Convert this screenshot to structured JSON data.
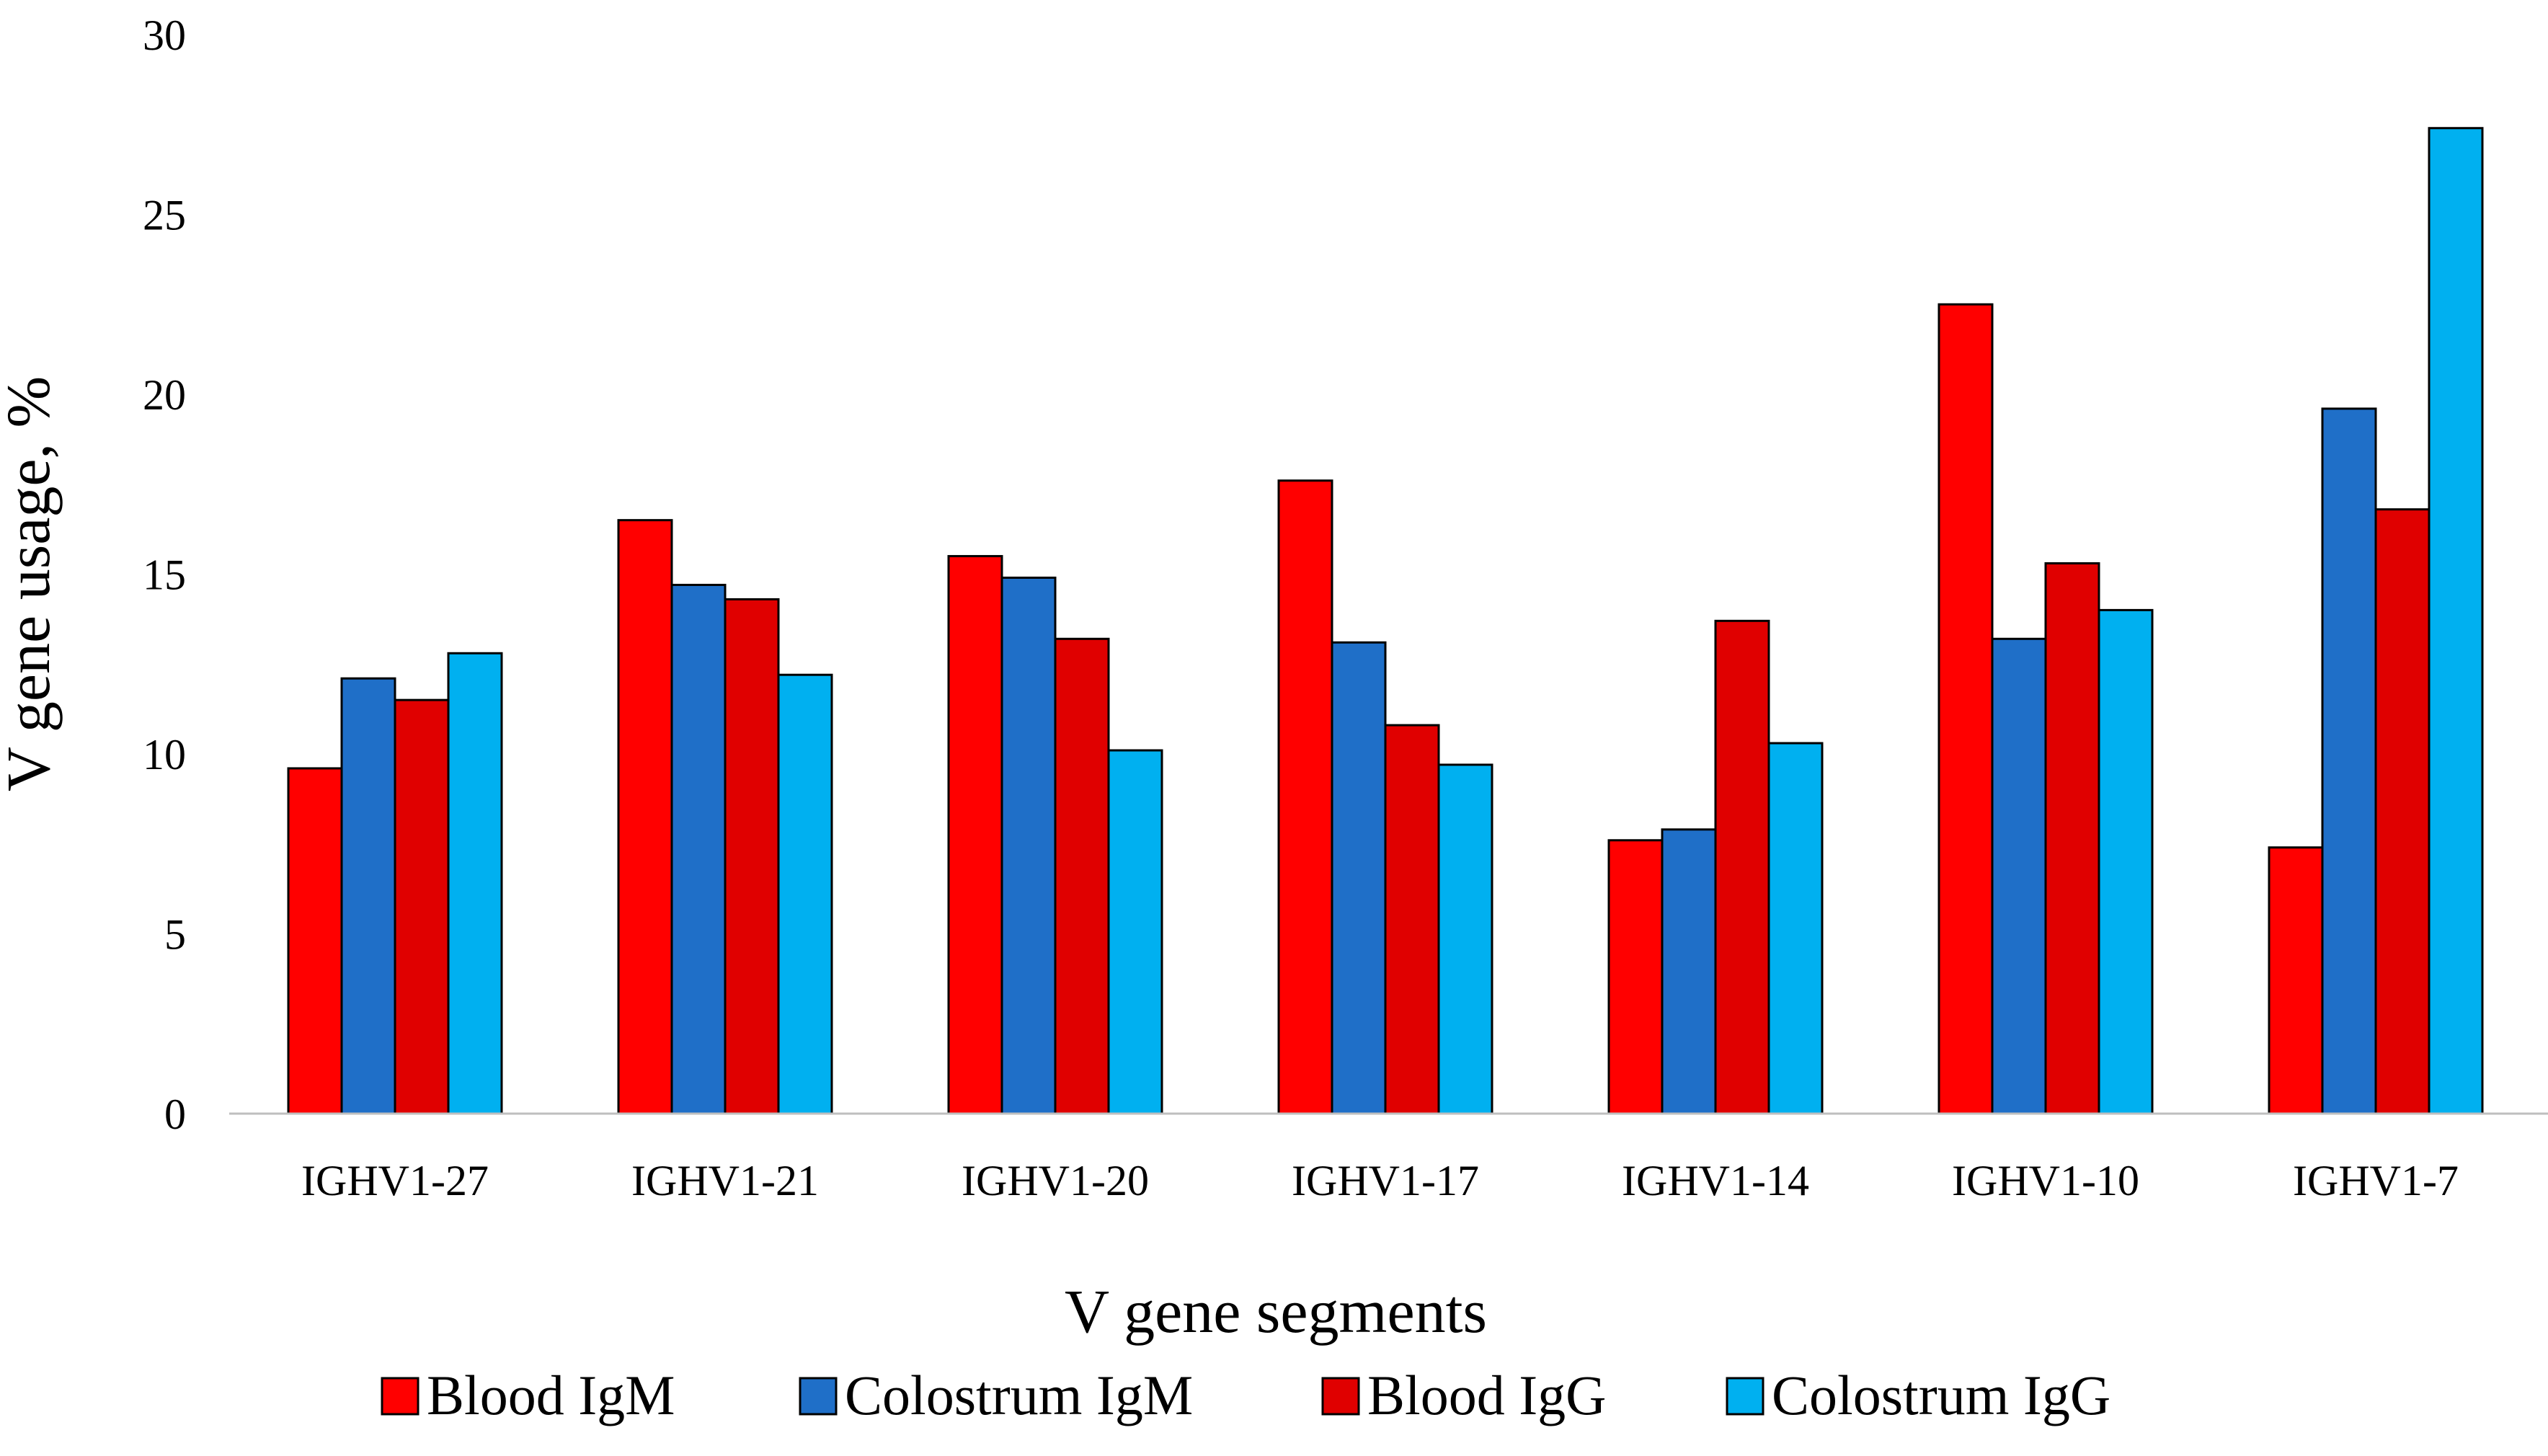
{
  "chart_data": {
    "type": "bar",
    "title": "",
    "xlabel": "V gene segments",
    "ylabel": "V gene usage, %",
    "ylim": [
      0,
      30
    ],
    "yticks": [
      0,
      5,
      10,
      15,
      20,
      25,
      30
    ],
    "grid": false,
    "legend_position": "bottom",
    "categories": [
      "IGHV1-27",
      "IGHV1-21",
      "IGHV1-20",
      "IGHV1-17",
      "IGHV1-14",
      "IGHV1-10",
      "IGHV1-7"
    ],
    "series": [
      {
        "name": "Blood IgM",
        "color": "#ff0000",
        "values": [
          9.6,
          16.5,
          15.5,
          17.6,
          7.6,
          22.5,
          7.4
        ]
      },
      {
        "name": "Colostrum IgM",
        "color": "#1f6fc8",
        "values": [
          12.1,
          14.7,
          14.9,
          13.1,
          7.9,
          13.2,
          19.6
        ]
      },
      {
        "name": "Blood IgG",
        "color": "#e00000",
        "values": [
          11.5,
          14.3,
          13.2,
          10.8,
          13.7,
          15.3,
          16.8
        ]
      },
      {
        "name": "Colostrum IgG",
        "color": "#00b0f0",
        "values": [
          12.8,
          12.2,
          10.1,
          9.7,
          10.3,
          14.0,
          27.4
        ]
      }
    ]
  }
}
